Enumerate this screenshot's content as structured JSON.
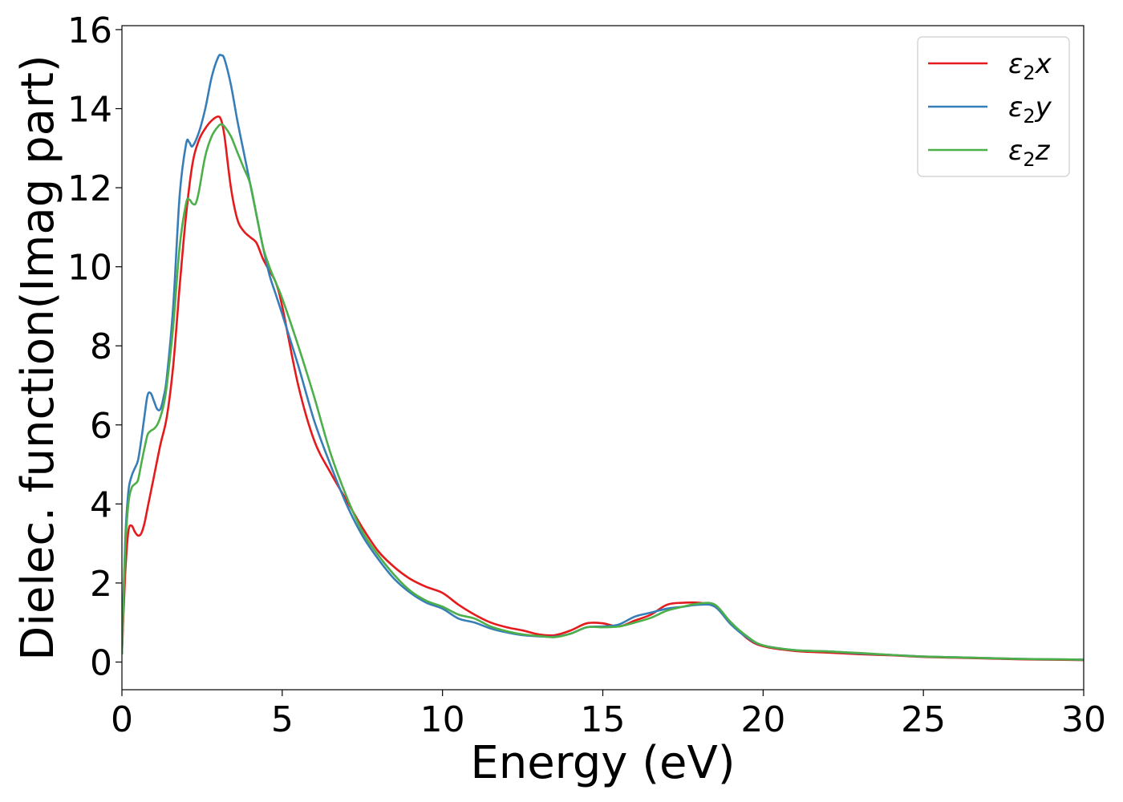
{
  "chart_data": {
    "type": "line",
    "title": "",
    "xlabel": "Energy (eV)",
    "ylabel": "Dielec. function(Imag part)",
    "xlim": [
      0,
      30
    ],
    "ylim": [
      -0.7,
      16.1
    ],
    "xticks": [
      0,
      5,
      10,
      15,
      20,
      25,
      30
    ],
    "yticks": [
      0,
      2,
      4,
      6,
      8,
      10,
      12,
      14,
      16
    ],
    "grid": false,
    "legend_position": "top-right",
    "series": [
      {
        "name": "ε₂x",
        "legend_base": "ε",
        "legend_sub": "2",
        "legend_var": "x",
        "color": "#e41a1c",
        "x": [
          0,
          0.1,
          0.2,
          0.3,
          0.4,
          0.5,
          0.6,
          0.7,
          0.8,
          1.0,
          1.2,
          1.4,
          1.6,
          1.8,
          2.0,
          2.2,
          2.4,
          2.6,
          2.8,
          3.0,
          3.1,
          3.2,
          3.4,
          3.6,
          3.8,
          4.0,
          4.2,
          4.4,
          4.6,
          4.8,
          5.0,
          5.5,
          6.0,
          6.5,
          7.0,
          7.5,
          8.0,
          8.5,
          9.0,
          9.5,
          10.0,
          10.5,
          11.0,
          11.5,
          12.0,
          12.5,
          13.0,
          13.5,
          14.0,
          14.5,
          15.0,
          15.5,
          16.0,
          16.5,
          17.0,
          17.5,
          18.0,
          18.5,
          19.0,
          19.5,
          20.0,
          21.0,
          22.0,
          23.0,
          24.0,
          25.0,
          26.0,
          27.0,
          28.0,
          29.0,
          30.0
        ],
        "y": [
          0.2,
          2.2,
          3.3,
          3.45,
          3.3,
          3.2,
          3.25,
          3.5,
          3.9,
          4.7,
          5.5,
          6.2,
          7.5,
          9.5,
          11.3,
          12.6,
          13.2,
          13.5,
          13.7,
          13.8,
          13.7,
          13.3,
          12.0,
          11.2,
          10.9,
          10.75,
          10.6,
          10.2,
          9.9,
          9.6,
          9.0,
          7.0,
          5.6,
          4.8,
          4.1,
          3.4,
          2.8,
          2.4,
          2.1,
          1.9,
          1.75,
          1.45,
          1.2,
          1.0,
          0.88,
          0.8,
          0.7,
          0.68,
          0.8,
          0.98,
          0.98,
          0.9,
          1.05,
          1.2,
          1.45,
          1.5,
          1.5,
          1.4,
          1.0,
          0.6,
          0.4,
          0.28,
          0.24,
          0.2,
          0.17,
          0.13,
          0.11,
          0.09,
          0.07,
          0.06,
          0.05
        ]
      },
      {
        "name": "ε₂y",
        "legend_base": "ε",
        "legend_sub": "2",
        "legend_var": "y",
        "color": "#377eb8",
        "x": [
          0,
          0.1,
          0.2,
          0.3,
          0.4,
          0.5,
          0.6,
          0.7,
          0.8,
          0.9,
          1.0,
          1.1,
          1.2,
          1.3,
          1.4,
          1.6,
          1.8,
          2.0,
          2.1,
          2.2,
          2.4,
          2.6,
          2.8,
          3.0,
          3.1,
          3.2,
          3.4,
          3.6,
          3.8,
          4.0,
          4.2,
          4.4,
          4.6,
          4.8,
          5.0,
          5.5,
          6.0,
          6.5,
          7.0,
          7.5,
          8.0,
          8.5,
          9.0,
          9.5,
          10.0,
          10.5,
          11.0,
          11.5,
          12.0,
          12.5,
          13.0,
          13.5,
          14.0,
          14.5,
          15.0,
          15.5,
          16.0,
          16.5,
          17.0,
          17.5,
          18.0,
          18.5,
          19.0,
          19.5,
          20.0,
          21.0,
          22.0,
          23.0,
          24.0,
          25.0,
          26.0,
          27.0,
          28.0,
          29.0,
          30.0
        ],
        "y": [
          0.2,
          3.0,
          4.3,
          4.7,
          4.9,
          5.1,
          5.6,
          6.2,
          6.75,
          6.8,
          6.6,
          6.4,
          6.4,
          6.7,
          7.2,
          9.0,
          11.8,
          13.1,
          13.15,
          13.05,
          13.4,
          14.0,
          14.8,
          15.3,
          15.35,
          15.25,
          14.6,
          13.7,
          12.9,
          12.1,
          11.3,
          10.5,
          9.8,
          9.3,
          8.8,
          7.5,
          6.1,
          5.0,
          4.0,
          3.2,
          2.6,
          2.1,
          1.75,
          1.5,
          1.35,
          1.1,
          1.0,
          0.85,
          0.75,
          0.68,
          0.65,
          0.64,
          0.72,
          0.88,
          0.9,
          0.95,
          1.15,
          1.25,
          1.35,
          1.4,
          1.45,
          1.4,
          0.95,
          0.62,
          0.42,
          0.3,
          0.27,
          0.22,
          0.18,
          0.14,
          0.12,
          0.1,
          0.08,
          0.07,
          0.06
        ]
      },
      {
        "name": "ε₂z",
        "legend_base": "ε",
        "legend_sub": "2",
        "legend_var": "z",
        "color": "#4daf4a",
        "x": [
          0,
          0.1,
          0.2,
          0.3,
          0.4,
          0.5,
          0.6,
          0.7,
          0.8,
          0.9,
          1.0,
          1.1,
          1.2,
          1.3,
          1.4,
          1.6,
          1.8,
          2.0,
          2.1,
          2.2,
          2.3,
          2.4,
          2.6,
          2.8,
          3.0,
          3.1,
          3.2,
          3.4,
          3.6,
          3.8,
          4.0,
          4.2,
          4.4,
          4.6,
          4.8,
          5.0,
          5.5,
          6.0,
          6.5,
          7.0,
          7.5,
          8.0,
          8.5,
          9.0,
          9.5,
          10.0,
          10.5,
          11.0,
          11.5,
          12.0,
          12.5,
          13.0,
          13.5,
          14.0,
          14.5,
          15.0,
          15.5,
          16.0,
          16.5,
          17.0,
          17.5,
          18.0,
          18.5,
          19.0,
          19.5,
          20.0,
          21.0,
          22.0,
          23.0,
          24.0,
          25.0,
          26.0,
          27.0,
          28.0,
          29.0,
          30.0
        ],
        "y": [
          0.2,
          2.8,
          4.0,
          4.4,
          4.5,
          4.6,
          5.0,
          5.4,
          5.75,
          5.85,
          5.9,
          6.0,
          6.2,
          6.5,
          7.0,
          8.5,
          10.5,
          11.6,
          11.7,
          11.6,
          11.6,
          11.9,
          12.8,
          13.3,
          13.55,
          13.6,
          13.55,
          13.3,
          12.9,
          12.5,
          12.1,
          11.3,
          10.5,
          10.0,
          9.6,
          9.2,
          8.0,
          6.7,
          5.3,
          4.2,
          3.3,
          2.7,
          2.2,
          1.8,
          1.55,
          1.4,
          1.2,
          1.1,
          0.9,
          0.78,
          0.7,
          0.66,
          0.63,
          0.72,
          0.88,
          0.88,
          0.9,
          1.0,
          1.12,
          1.3,
          1.4,
          1.48,
          1.45,
          1.0,
          0.65,
          0.42,
          0.3,
          0.27,
          0.23,
          0.18,
          0.14,
          0.12,
          0.1,
          0.08,
          0.07,
          0.06
        ]
      }
    ]
  }
}
